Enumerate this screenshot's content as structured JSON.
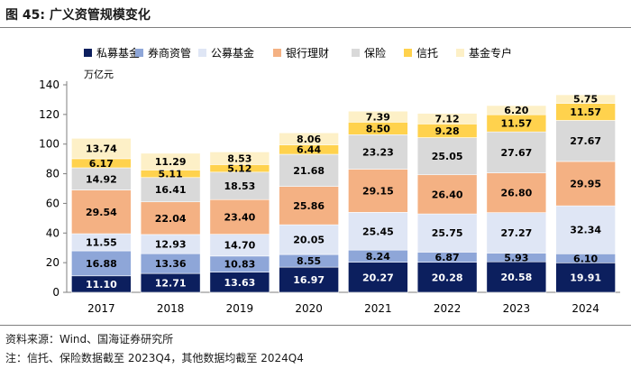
{
  "figure": {
    "title": "图 45:  广义资管规模变化",
    "source": "资料来源：Wind、国海证券研究所",
    "note": "注：信托、保险数据截至 2023Q4，其他数据均截至 2024Q4"
  },
  "chart_data": {
    "type": "bar",
    "stacked": true,
    "title": "广义资管规模变化",
    "unit_label": "万亿元",
    "ylim": [
      0,
      140
    ],
    "yticks": [
      0,
      20,
      40,
      60,
      80,
      100,
      120,
      140
    ],
    "legend_position": "top",
    "grid": false,
    "categories": [
      "2017",
      "2018",
      "2019",
      "2020",
      "2021",
      "2022",
      "2023",
      "2024"
    ],
    "series": [
      {
        "name": "私募基金",
        "color": "#0c1f5e",
        "label_color": "#ffffff",
        "values": [
          11.1,
          12.71,
          13.63,
          16.97,
          20.27,
          20.28,
          20.58,
          19.91
        ]
      },
      {
        "name": "券商资管",
        "color": "#8ea6d8",
        "label_color": "#000000",
        "values": [
          16.88,
          13.36,
          10.83,
          8.55,
          8.24,
          6.87,
          5.93,
          6.1
        ]
      },
      {
        "name": "公募基金",
        "color": "#dfe6f5",
        "label_color": "#000000",
        "values": [
          11.55,
          12.93,
          14.7,
          20.05,
          25.45,
          25.75,
          27.27,
          32.34
        ]
      },
      {
        "name": "银行理财",
        "color": "#f4b183",
        "label_color": "#000000",
        "values": [
          29.54,
          22.04,
          23.4,
          25.86,
          29.15,
          26.4,
          26.8,
          29.95
        ]
      },
      {
        "name": "保险",
        "color": "#d9d9d9",
        "label_color": "#000000",
        "values": [
          14.92,
          16.41,
          18.53,
          21.68,
          23.23,
          25.05,
          27.67,
          27.67
        ]
      },
      {
        "name": "信托",
        "color": "#ffd24d",
        "label_color": "#000000",
        "values": [
          6.17,
          5.11,
          5.12,
          6.44,
          8.5,
          9.28,
          11.57,
          11.57
        ]
      },
      {
        "name": "基金专户",
        "color": "#fdf0c7",
        "label_color": "#000000",
        "values": [
          13.74,
          11.29,
          8.53,
          8.06,
          7.39,
          7.12,
          6.2,
          5.75
        ]
      }
    ]
  }
}
